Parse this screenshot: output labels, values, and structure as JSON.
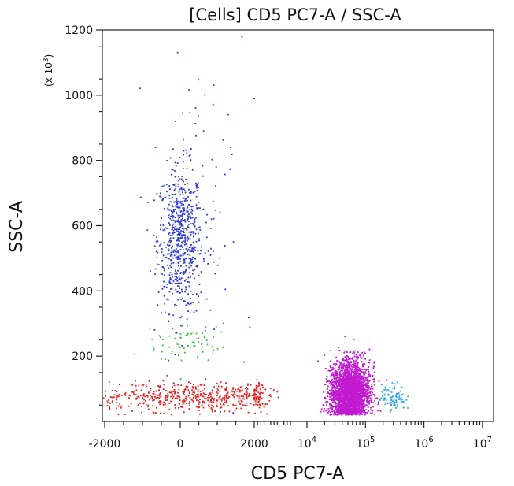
{
  "chart_data": {
    "type": "scatter",
    "title": "[Cells] CD5 PC7-A / SSC-A",
    "xlabel": "CD5 PC7-A",
    "ylabel": "SSC-A",
    "y_multiplier_label": "(x 10",
    "y_multiplier_exp": "3",
    "x_scale": "biexponential",
    "xlim": [
      -2500,
      10000000
    ],
    "ylim": [
      0,
      1200
    ],
    "x_ticks": [
      {
        "value": -2000,
        "label": "-2000"
      },
      {
        "value": 0,
        "label": "0"
      },
      {
        "value": 2000,
        "label": "2000"
      },
      {
        "value": 10000,
        "base": "10",
        "exp": "4"
      },
      {
        "value": 100000,
        "base": "10",
        "exp": "5"
      },
      {
        "value": 1000000,
        "base": "10",
        "exp": "6"
      },
      {
        "value": 10000000,
        "base": "10",
        "exp": "7"
      }
    ],
    "y_ticks": [
      200,
      400,
      600,
      800,
      1000,
      1200
    ],
    "grid": false,
    "populations": [
      {
        "color": "#2b3ad6",
        "count": 650,
        "x_center": 0,
        "x_spread": 300,
        "y_center": 560,
        "y_spread": 110
      },
      {
        "color": "#2b3ad6",
        "count": 90,
        "x_center": 600,
        "x_spread": 600,
        "y_center": 700,
        "y_spread": 260
      },
      {
        "color": "#2ec43a",
        "count": 70,
        "x_center": 200,
        "x_spread": 500,
        "y_center": 240,
        "y_spread": 40
      },
      {
        "color": "#e82020",
        "count": 600,
        "x_center": 300,
        "x_spread": 1600,
        "y_center": 75,
        "y_spread": 22
      },
      {
        "color": "#c21ad0",
        "count": 3500,
        "x_center": 55000,
        "x_spread": 25000,
        "y_center": 90,
        "y_spread": 45
      },
      {
        "color": "#2aa7e8",
        "count": 90,
        "x_center": 300000,
        "x_spread": 80000,
        "y_center": 75,
        "y_spread": 20
      }
    ]
  }
}
